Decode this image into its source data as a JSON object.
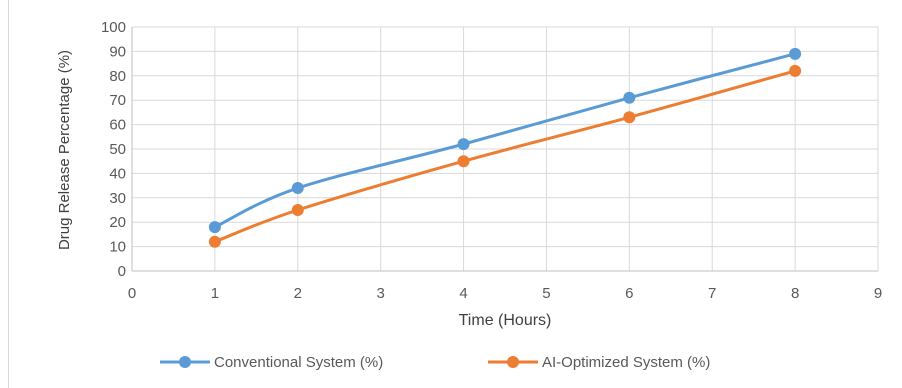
{
  "chart_data": {
    "type": "line",
    "title": "",
    "xlabel": "Time (Hours)",
    "ylabel": "Drug Release Percentage (%)",
    "xlim": [
      0,
      9
    ],
    "ylim": [
      0,
      100
    ],
    "xticks": [
      0,
      1,
      2,
      3,
      4,
      5,
      6,
      7,
      8,
      9
    ],
    "yticks": [
      0,
      10,
      20,
      30,
      40,
      50,
      60,
      70,
      80,
      90,
      100
    ],
    "grid": true,
    "legend_position": "bottom",
    "x": [
      1,
      2,
      4,
      6,
      8
    ],
    "series": [
      {
        "name": "Conventional System (%)",
        "color": "#5b9bd5",
        "values": [
          18,
          34,
          52,
          71,
          89
        ]
      },
      {
        "name": "AI-Optimized System (%)",
        "color": "#ed7d31",
        "values": [
          12,
          25,
          45,
          63,
          82
        ]
      }
    ]
  }
}
